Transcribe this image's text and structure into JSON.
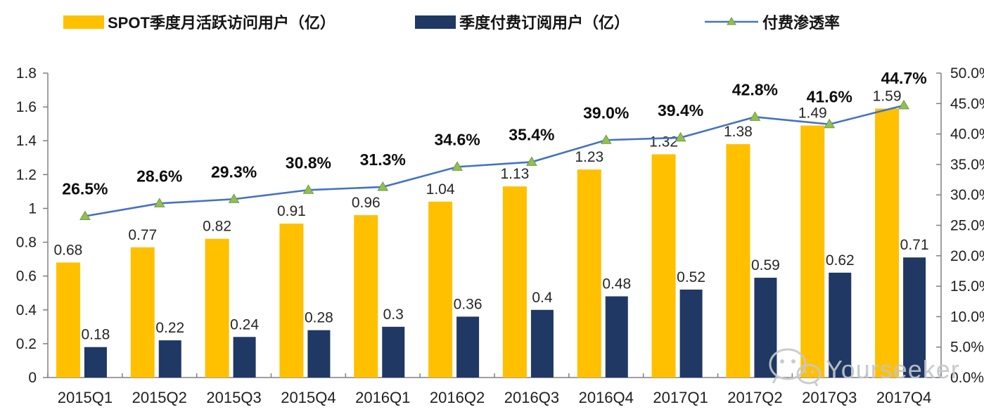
{
  "legend": {
    "items": [
      {
        "label": "SPOT季度月活跃访问用户（亿）",
        "type": "bar",
        "color": "#FFC000"
      },
      {
        "label": "季度付费订阅用户（亿）",
        "type": "bar",
        "color": "#1F3864"
      },
      {
        "label": "付费渗透率",
        "type": "line",
        "color": "#4472C4",
        "marker_fill": "#93BE51",
        "marker_stroke": "#6D9E3F"
      }
    ]
  },
  "chart_data": {
    "type": "combo_bar_line",
    "grid": false,
    "legend_position": "top",
    "categories": [
      "2015Q1",
      "2015Q2",
      "2015Q3",
      "2015Q4",
      "2016Q1",
      "2016Q2",
      "2016Q3",
      "2016Q4",
      "2017Q1",
      "2017Q2",
      "2017Q3",
      "2017Q4"
    ],
    "series": [
      {
        "name": "SPOT季度月活跃访问用户（亿）",
        "type": "bar",
        "axis": "left",
        "color": "#FFC000",
        "values": [
          0.68,
          0.77,
          0.82,
          0.91,
          0.96,
          1.04,
          1.13,
          1.23,
          1.32,
          1.38,
          1.49,
          1.59
        ],
        "labels": [
          "0.68",
          "0.77",
          "0.82",
          "0.91",
          "0.96",
          "1.04",
          "1.13",
          "1.23",
          "1.32",
          "1.38",
          "1.49",
          "1.59"
        ]
      },
      {
        "name": "季度付费订阅用户（亿）",
        "type": "bar",
        "axis": "left",
        "color": "#1F3864",
        "values": [
          0.18,
          0.22,
          0.24,
          0.28,
          0.3,
          0.36,
          0.4,
          0.48,
          0.52,
          0.59,
          0.62,
          0.71
        ],
        "labels": [
          "0.18",
          "0.22",
          "0.24",
          "0.28",
          "0.3",
          "0.36",
          "0.4",
          "0.48",
          "0.52",
          "0.59",
          "0.62",
          "0.71"
        ]
      },
      {
        "name": "付费渗透率",
        "type": "line",
        "axis": "right",
        "color": "#4472C4",
        "marker_fill": "#93BE51",
        "marker_stroke": "#6D9E3F",
        "values": [
          26.5,
          28.6,
          29.3,
          30.8,
          31.3,
          34.6,
          35.4,
          39.0,
          39.4,
          42.8,
          41.6,
          44.7
        ],
        "labels": [
          "26.5%",
          "28.6%",
          "29.3%",
          "30.8%",
          "31.3%",
          "34.6%",
          "35.4%",
          "39.0%",
          "39.4%",
          "42.8%",
          "41.6%",
          "44.7%"
        ]
      }
    ],
    "left_axis": {
      "min": 0,
      "max": 1.8,
      "step": 0.2,
      "ticks": [
        "0",
        "0.2",
        "0.4",
        "0.6",
        "0.8",
        "1",
        "1.2",
        "1.4",
        "1.6",
        "1.8"
      ]
    },
    "right_axis": {
      "min": 0,
      "max": 50,
      "step": 5,
      "ticks": [
        "0.0%",
        "5.0%",
        "10.0%",
        "15.0%",
        "20.0%",
        "25.0%",
        "30.0%",
        "35.0%",
        "40.0%",
        "45.0%",
        "50.0%"
      ]
    }
  },
  "watermark": {
    "text": "Yourseeker",
    "icon": "wechat-icon"
  }
}
